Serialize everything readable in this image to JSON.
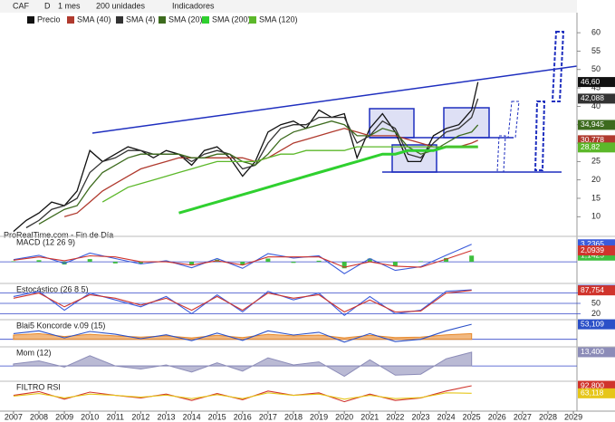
{
  "toolbar": {
    "symbol": "CAF",
    "period": "D",
    "interval": "1 mes",
    "units": "200 unidades",
    "indicators": "Indicadores"
  },
  "watermark": "ProRealTime.com - Fin de Día",
  "chart_data": [
    {
      "type": "line",
      "x": [
        2007.0,
        2007.5,
        2008.0,
        2008.5,
        2009.0,
        2009.5,
        2010.0,
        2010.5,
        2011.0,
        2011.5,
        2012.0,
        2012.5,
        2013.0,
        2013.5,
        2014.0,
        2014.5,
        2015.0,
        2015.5,
        2016.0,
        2016.5,
        2017.0,
        2017.5,
        2018.0,
        2018.5,
        2019.0,
        2019.5,
        2020.0,
        2020.5,
        2021.0,
        2021.5,
        2022.0,
        2022.5,
        2023.0,
        2023.5,
        2024.0,
        2024.5,
        2025.0,
        2025.25
      ],
      "xlim": [
        2006.47,
        2029.14
      ],
      "xticks": [
        2007,
        2008,
        2009,
        2010,
        2011,
        2012,
        2013,
        2014,
        2015,
        2016,
        2017,
        2018,
        2019,
        2020,
        2021,
        2022,
        2023,
        2024,
        2025,
        2026,
        2027,
        2028,
        2029
      ],
      "ylim": [
        5.4,
        62
      ],
      "yticks": [
        10,
        15,
        20,
        25,
        30,
        35,
        40,
        45,
        50,
        55,
        60
      ],
      "series": [
        {
          "name": "Precio",
          "color": "#111111",
          "values": [
            6,
            9,
            11,
            14,
            13,
            17,
            28,
            25,
            27,
            29,
            28,
            26,
            28,
            27,
            24,
            28,
            29,
            26,
            21,
            25,
            33,
            35,
            36,
            34,
            39,
            37,
            38,
            26,
            34,
            38,
            33,
            25,
            25,
            32,
            34,
            35,
            39,
            46.6
          ],
          "value_labels": [
            null,
            null,
            null,
            null,
            null,
            null,
            null,
            null,
            null,
            null,
            null,
            null,
            null,
            null,
            null,
            null,
            null,
            null,
            null,
            null,
            null,
            null,
            null,
            null,
            null,
            null,
            null,
            null,
            null,
            null,
            null,
            null,
            null,
            null,
            null,
            null,
            null,
            "46,60"
          ]
        },
        {
          "name": "SMA (40)",
          "color": "#b03a2e",
          "values": [
            null,
            null,
            null,
            null,
            10,
            11,
            14,
            17,
            19,
            21,
            23,
            24,
            25,
            26,
            26,
            26,
            26,
            26,
            26,
            25,
            26,
            28,
            30,
            31,
            32,
            33,
            34,
            33,
            32,
            32,
            32,
            31,
            30,
            29,
            29,
            29,
            30,
            30.778
          ],
          "value_labels": [
            null,
            null,
            null,
            null,
            null,
            null,
            null,
            null,
            null,
            null,
            null,
            null,
            null,
            null,
            null,
            null,
            null,
            null,
            null,
            null,
            null,
            null,
            null,
            null,
            null,
            null,
            null,
            null,
            null,
            null,
            null,
            null,
            null,
            null,
            null,
            null,
            null,
            "30,778"
          ]
        },
        {
          "name": "SMA (4)",
          "color": "#333333",
          "values": [
            null,
            7,
            9,
            12,
            13,
            15,
            22,
            25,
            26,
            28,
            28,
            27,
            27,
            27,
            25,
            27,
            28,
            27,
            23,
            24,
            30,
            34,
            35,
            35,
            37,
            37,
            37,
            30,
            32,
            36,
            34,
            27,
            26,
            30,
            33,
            34,
            37,
            42.088
          ],
          "value_labels": [
            null,
            null,
            null,
            null,
            null,
            null,
            null,
            null,
            null,
            null,
            null,
            null,
            null,
            null,
            null,
            null,
            null,
            null,
            null,
            null,
            null,
            null,
            null,
            null,
            null,
            null,
            null,
            null,
            null,
            null,
            null,
            null,
            null,
            null,
            null,
            null,
            null,
            "42,088"
          ]
        },
        {
          "name": "SMA (20)",
          "color": "#3d6b1e",
          "values": [
            null,
            null,
            8,
            10,
            12,
            13,
            18,
            22,
            24,
            26,
            27,
            27,
            27,
            27,
            26,
            26,
            27,
            27,
            25,
            24,
            27,
            31,
            33,
            34,
            35,
            36,
            35,
            32,
            32,
            34,
            33,
            29,
            27,
            28,
            30,
            32,
            33,
            34.945
          ],
          "value_labels": [
            null,
            null,
            null,
            null,
            null,
            null,
            null,
            null,
            null,
            null,
            null,
            null,
            null,
            null,
            null,
            null,
            null,
            null,
            null,
            null,
            null,
            null,
            null,
            null,
            null,
            null,
            null,
            null,
            null,
            null,
            null,
            null,
            null,
            null,
            null,
            null,
            null,
            "34,945"
          ]
        },
        {
          "name": "SMA (200)",
          "color": "#2fd02f",
          "values": [
            null,
            null,
            null,
            null,
            null,
            null,
            null,
            null,
            null,
            null,
            null,
            null,
            null,
            11,
            12,
            13,
            14,
            15,
            16,
            17,
            18,
            19,
            20,
            21,
            22,
            23,
            24,
            25,
            26,
            27,
            27,
            28,
            28,
            28,
            29,
            29,
            29,
            29
          ]
        },
        {
          "name": "SMA (120)",
          "color": "#5cb82a",
          "values": [
            null,
            null,
            null,
            null,
            null,
            null,
            null,
            14,
            16,
            18,
            19,
            20,
            21,
            22,
            23,
            24,
            25,
            25,
            25,
            25,
            26,
            27,
            27,
            28,
            28,
            28,
            28,
            29,
            29,
            29,
            29,
            29,
            29,
            29,
            29,
            29,
            29,
            28.82
          ],
          "value_labels": [
            null,
            null,
            null,
            null,
            null,
            null,
            null,
            null,
            null,
            null,
            null,
            null,
            null,
            null,
            null,
            null,
            null,
            null,
            null,
            null,
            null,
            null,
            null,
            null,
            null,
            null,
            null,
            null,
            null,
            null,
            null,
            null,
            null,
            null,
            null,
            null,
            null,
            "28,82"
          ]
        }
      ]
    },
    {
      "type": "line",
      "title": "MACD (12 26 9)",
      "x": [
        2007,
        2008,
        2009,
        2010,
        2011,
        2012,
        2013,
        2014,
        2015,
        2016,
        2017,
        2018,
        2019,
        2020,
        2021,
        2022,
        2023,
        2024,
        2025
      ],
      "xlim": [
        2006.47,
        2029.14
      ],
      "ylim": [
        -3.5,
        4.2
      ],
      "series": [
        {
          "style": "bar",
          "color": "#3fbf3f",
          "values": [
            0.1,
            0.3,
            -0.5,
            0.5,
            -0.3,
            -0.4,
            0.2,
            -0.5,
            0.4,
            -0.6,
            0.6,
            -0.2,
            0.2,
            -1.2,
            0.6,
            -0.8,
            0.1,
            0.7,
            1.1425
          ],
          "value_labels": [
            null,
            null,
            null,
            null,
            null,
            null,
            null,
            null,
            null,
            null,
            null,
            null,
            null,
            null,
            null,
            null,
            null,
            null,
            "1,1425"
          ]
        },
        {
          "color": "#3b5bdb",
          "values": [
            0.4,
            1.2,
            -0.3,
            1.6,
            0.6,
            -0.4,
            0.2,
            -1.1,
            0.6,
            -1.2,
            1.5,
            0.7,
            1.1,
            -2.2,
            0.6,
            -1.6,
            -0.9,
            1.2,
            3.2365
          ],
          "value_labels": [
            null,
            null,
            null,
            null,
            null,
            null,
            null,
            null,
            null,
            null,
            null,
            null,
            null,
            null,
            null,
            null,
            null,
            null,
            "3,2365"
          ]
        },
        {
          "color": "#d0342c",
          "values": [
            0.3,
            0.9,
            0.2,
            1.1,
            0.9,
            0,
            0,
            -0.6,
            0.2,
            -0.6,
            0.9,
            0.9,
            0.9,
            -1,
            0,
            -0.8,
            -1,
            0.5,
            2.0939
          ],
          "value_labels": [
            null,
            null,
            null,
            null,
            null,
            null,
            null,
            null,
            null,
            null,
            null,
            null,
            null,
            null,
            null,
            null,
            null,
            null,
            "2,0939"
          ]
        }
      ]
    },
    {
      "type": "line",
      "title": "Estocástico (26 8 5)",
      "x": [
        2007,
        2008,
        2009,
        2010,
        2011,
        2012,
        2013,
        2014,
        2015,
        2016,
        2017,
        2018,
        2019,
        2020,
        2021,
        2022,
        2023,
        2024,
        2025
      ],
      "xlim": [
        2006.47,
        2029.14
      ],
      "ylim": [
        0,
        100
      ],
      "yticks": [
        20,
        50,
        80
      ],
      "grid": true,
      "series": [
        {
          "color": "#3b5bdb",
          "values": [
            70,
            85,
            30,
            80,
            60,
            40,
            70,
            20,
            75,
            25,
            85,
            60,
            80,
            15,
            70,
            20,
            30,
            85,
            89.289
          ],
          "value_labels": [
            null,
            null,
            null,
            null,
            null,
            null,
            null,
            null,
            null,
            null,
            null,
            null,
            null,
            null,
            null,
            null,
            null,
            null,
            "89,289"
          ]
        },
        {
          "color": "#d0342c",
          "values": [
            65,
            80,
            40,
            75,
            65,
            45,
            65,
            30,
            70,
            30,
            80,
            65,
            75,
            25,
            60,
            25,
            28,
            80,
            87.754
          ],
          "value_labels": [
            null,
            null,
            null,
            null,
            null,
            null,
            null,
            null,
            null,
            null,
            null,
            null,
            null,
            null,
            null,
            null,
            null,
            null,
            "87,754"
          ]
        }
      ]
    },
    {
      "type": "line",
      "title": "Blai5 Koncorde v.09 (15)",
      "x": [
        2007,
        2008,
        2009,
        2010,
        2011,
        2012,
        2013,
        2014,
        2015,
        2016,
        2017,
        2018,
        2019,
        2020,
        2021,
        2022,
        2023,
        2024,
        2025
      ],
      "xlim": [
        2006.47,
        2029.14
      ],
      "ylim": [
        -30,
        60
      ],
      "series": [
        {
          "style": "area",
          "color": "#e8892b",
          "values": [
            15,
            20,
            10,
            18,
            12,
            8,
            12,
            5,
            14,
            6,
            18,
            12,
            15,
            5,
            14,
            6,
            8,
            16,
            20
          ]
        },
        {
          "color": "#2b50c8",
          "values": [
            20,
            30,
            5,
            28,
            18,
            2,
            16,
            -5,
            22,
            -4,
            30,
            15,
            25,
            -10,
            20,
            -8,
            0,
            30,
            53.109
          ],
          "value_labels": [
            null,
            null,
            null,
            null,
            null,
            null,
            null,
            null,
            null,
            null,
            null,
            null,
            null,
            null,
            null,
            null,
            null,
            null,
            "53,109"
          ]
        }
      ]
    },
    {
      "type": "line",
      "title": "Mom (12)",
      "x": [
        2007,
        2008,
        2009,
        2010,
        2011,
        2012,
        2013,
        2014,
        2015,
        2016,
        2017,
        2018,
        2019,
        2020,
        2021,
        2022,
        2023,
        2024,
        2025
      ],
      "xlim": [
        2006.47,
        2029.14
      ],
      "ylim": [
        -14,
        16
      ],
      "series": [
        {
          "style": "area",
          "color": "#8c8cb8",
          "values": [
            2,
            5,
            -1,
            10,
            0,
            -3,
            1,
            -6,
            3,
            -5,
            8,
            1,
            4,
            -10,
            6,
            -9,
            -8,
            7,
            13.4
          ],
          "value_labels": [
            null,
            null,
            null,
            null,
            null,
            null,
            null,
            null,
            null,
            null,
            null,
            null,
            null,
            null,
            null,
            null,
            null,
            null,
            "13,400"
          ]
        }
      ]
    },
    {
      "type": "line",
      "title": "FILTRO RSI",
      "x": [
        2007,
        2008,
        2009,
        2010,
        2011,
        2012,
        2013,
        2014,
        2015,
        2016,
        2017,
        2018,
        2019,
        2020,
        2021,
        2022,
        2023,
        2024,
        2025
      ],
      "xlim": [
        2006.47,
        2029.14
      ],
      "ylim": [
        0,
        100
      ],
      "series": [
        {
          "color": "#d0342c",
          "values": [
            55,
            70,
            40,
            68,
            55,
            45,
            60,
            35,
            62,
            38,
            72,
            55,
            65,
            30,
            60,
            35,
            45,
            72,
            92.8
          ],
          "value_labels": [
            null,
            null,
            null,
            null,
            null,
            null,
            null,
            null,
            null,
            null,
            null,
            null,
            null,
            null,
            null,
            null,
            null,
            null,
            "92,800"
          ]
        },
        {
          "color": "#e6c619",
          "values": [
            52,
            62,
            45,
            60,
            55,
            48,
            56,
            42,
            58,
            42,
            65,
            55,
            60,
            40,
            55,
            42,
            46,
            65,
            63.118
          ],
          "value_labels": [
            null,
            null,
            null,
            null,
            null,
            null,
            null,
            null,
            null,
            null,
            null,
            null,
            null,
            null,
            null,
            null,
            null,
            null,
            "63,118"
          ]
        }
      ]
    }
  ]
}
